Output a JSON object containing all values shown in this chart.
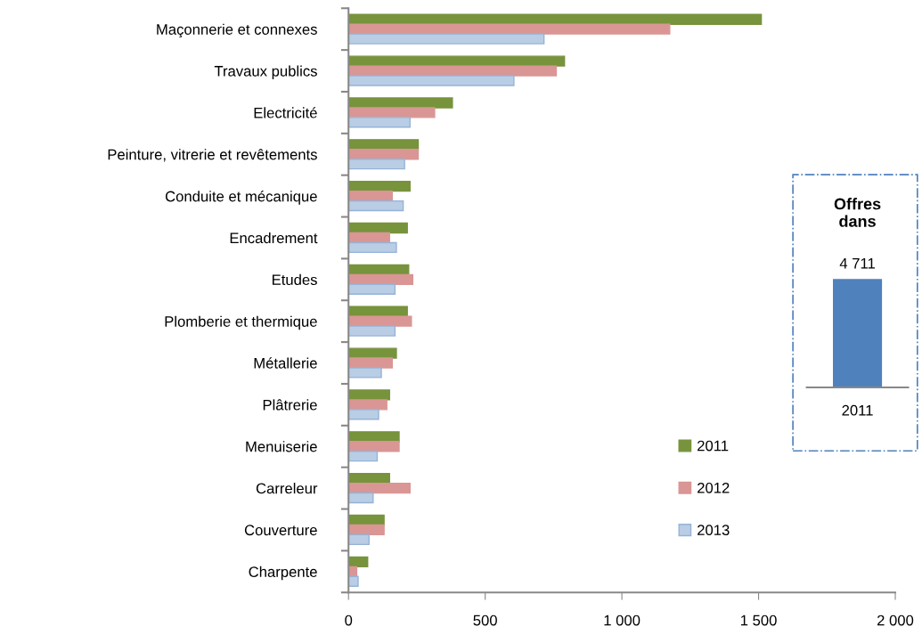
{
  "chart_data": [
    {
      "type": "bar",
      "orientation": "horizontal",
      "categories": [
        "Maçonnerie et connexes",
        "Travaux publics",
        "Electricité",
        "Peinture, vitrerie et revêtements",
        "Conduite et mécanique",
        "Encadrement",
        "Etudes",
        "Plomberie et thermique",
        "Métallerie",
        "Plâtrerie",
        "Menuiserie",
        "Carreleur",
        "Couverture",
        "Charpente"
      ],
      "series": [
        {
          "name": "2011",
          "color": "#77933c",
          "values": [
            1510,
            790,
            380,
            255,
            225,
            215,
            220,
            215,
            175,
            150,
            185,
            150,
            130,
            70
          ]
        },
        {
          "name": "2012",
          "color": "#d99694",
          "values": [
            1175,
            760,
            315,
            255,
            160,
            150,
            235,
            230,
            160,
            140,
            185,
            225,
            130,
            30
          ]
        },
        {
          "name": "2013",
          "color": "#b9cde5",
          "values": [
            715,
            605,
            225,
            205,
            200,
            175,
            170,
            170,
            120,
            110,
            105,
            90,
            75,
            35
          ]
        }
      ],
      "xlim": [
        0,
        2000
      ],
      "xticks": [
        0,
        500,
        {
          "value": 1000,
          "label": "1 000"
        },
        {
          "value": 1500,
          "label": "1 500"
        },
        {
          "value": 2000,
          "label": "2 000"
        }
      ],
      "grid": false,
      "legend": "bottom right"
    },
    {
      "type": "bar",
      "title": "Offres\ndans",
      "categories": [
        "2011"
      ],
      "values": [
        4711
      ],
      "data_labels": true,
      "colors": [
        "#4f81bd"
      ]
    }
  ]
}
